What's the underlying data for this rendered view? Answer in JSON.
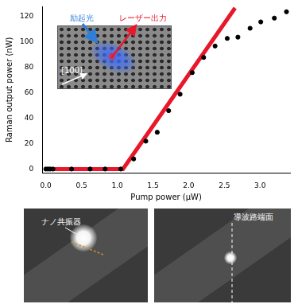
{
  "chart_data": {
    "type": "scatter",
    "x_label": "Pump power (μW)",
    "y_label": "Raman output power (nW)",
    "xlim": [
      -0.05,
      3.42
    ],
    "ylim": [
      -3,
      128
    ],
    "xticks": [
      {
        "value": 0,
        "label": "0.0"
      },
      0.5,
      {
        "value": 1,
        "label": "1.0"
      },
      1.5,
      {
        "value": 2,
        "label": "2.0"
      },
      2.5,
      {
        "value": 3,
        "label": "3.0"
      }
    ],
    "yticks": [
      0,
      20,
      40,
      60,
      80,
      100,
      120
    ],
    "grid": false,
    "series": [
      {
        "type": "scatter",
        "color": "#000000",
        "marker": "circle",
        "x": [
          0.0,
          0.03,
          0.06,
          0.1,
          0.36,
          0.62,
          0.83,
          1.05,
          1.23,
          1.4,
          1.56,
          1.72,
          1.88,
          2.05,
          2.21,
          2.37,
          2.54,
          2.69,
          2.86,
          3.01,
          3.2,
          3.37
        ],
        "values": [
          0,
          0,
          0,
          0,
          0,
          0,
          0,
          0,
          8,
          22,
          29,
          46,
          59,
          76,
          88,
          97,
          103,
          104,
          111,
          116,
          119,
          124
        ]
      },
      {
        "type": "line",
        "color": "#e8182a",
        "line_style": "solid",
        "x": [
          0.0,
          1.08,
          2.65
        ],
        "values": [
          0,
          0,
          127
        ]
      }
    ],
    "inset_labels": {
      "excitation": "励起光",
      "laser": "レーザー出力",
      "direction": "[100]"
    }
  },
  "photos": [
    {
      "label": "ナノ共振器"
    },
    {
      "label": "導波路端面"
    }
  ]
}
